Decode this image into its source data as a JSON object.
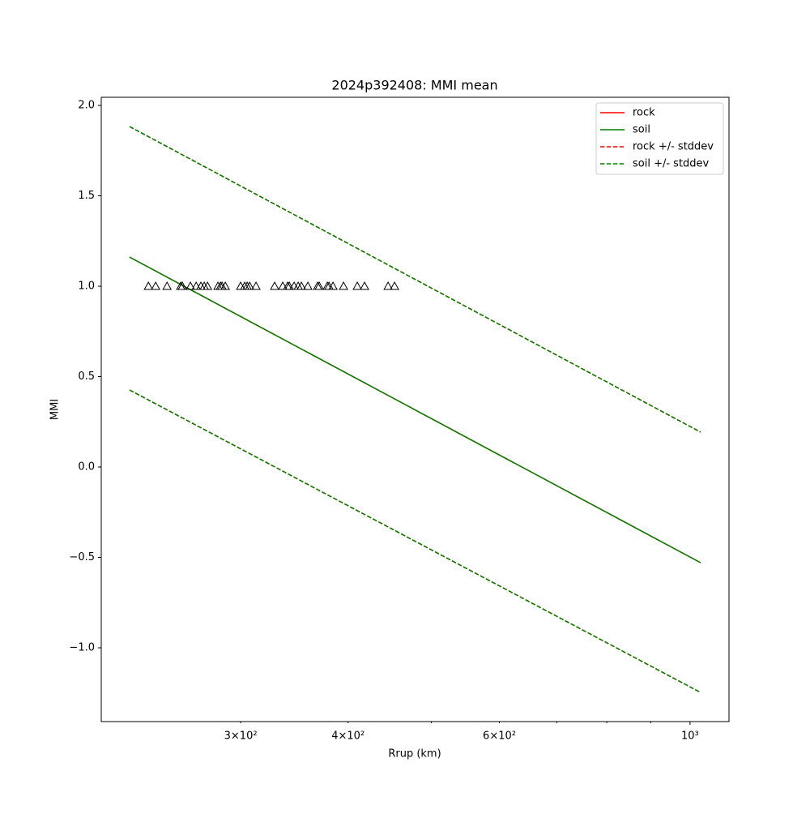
{
  "chart_data": {
    "type": "line",
    "title": "2024p392408: MMI mean",
    "x_label": "Rrup (km)",
    "y_label": "MMI",
    "xscale": "log",
    "xlim": [
      206.5,
      1110
    ],
    "ylim": [
      -1.408,
      2.045
    ],
    "xticks": [
      {
        "value": 300,
        "label": "3×10²"
      },
      {
        "value": 400,
        "label": "4×10²"
      },
      {
        "value": 600,
        "label": "6×10²"
      },
      {
        "value": 1000,
        "label": "10³"
      }
    ],
    "xminorticks": [
      500,
      700,
      800,
      900
    ],
    "yticks": [
      {
        "value": -1,
        "label": "−1.0"
      },
      {
        "value": -0.5,
        "label": "−0.5"
      },
      {
        "value": 0,
        "label": "0.0"
      },
      {
        "value": 0.5,
        "label": "0.5"
      },
      {
        "value": 1,
        "label": "1.0"
      },
      {
        "value": 1.5,
        "label": "1.5"
      },
      {
        "value": 2,
        "label": "2.0"
      }
    ],
    "legend": "upper right",
    "x": [
      222.8,
      1028.6
    ],
    "series": [
      {
        "name": "rock",
        "color": "#ff0000",
        "dashed": false,
        "values": [
          1.161,
          -0.529
        ]
      },
      {
        "name": "soil",
        "color": "#008000",
        "dashed": false,
        "values": [
          1.161,
          -0.529
        ]
      },
      {
        "name": "rock +/- stddev",
        "color": "#ff0000",
        "dashed": true,
        "values": [
          1.883,
          0.193
        ],
        "values_lower": [
          0.426,
          -1.247
        ]
      },
      {
        "name": "soil +/- stddev",
        "color": "#008000",
        "dashed": true,
        "values": [
          1.883,
          0.193
        ],
        "values_lower": [
          0.426,
          -1.247
        ]
      }
    ],
    "observations": {
      "marker_color": "#000000",
      "x": [
        234.3,
        238.9,
        246.3,
        255.5,
        256.6,
        262.2,
        266.3,
        269.7,
        272.1,
        274.5,
        282.3,
        284.2,
        285.4,
        287.9,
        300,
        303.3,
        305.3,
        307.3,
        312.6,
        328.6,
        335.8,
        340.2,
        341.7,
        346.2,
        350.0,
        353.0,
        359.2,
        368.7,
        370.3,
        378.4,
        380.1,
        384.2,
        395.2,
        410.0,
        418.1,
        445.3,
        453.1
      ],
      "values": [
        1,
        1,
        1,
        1,
        1,
        1,
        1,
        1,
        1,
        1,
        1,
        1,
        1,
        1,
        1,
        1,
        1,
        1,
        1,
        1,
        1,
        1,
        1,
        1,
        1,
        1,
        1,
        1,
        1,
        1,
        1,
        1,
        1,
        1,
        1,
        1,
        1
      ]
    }
  }
}
